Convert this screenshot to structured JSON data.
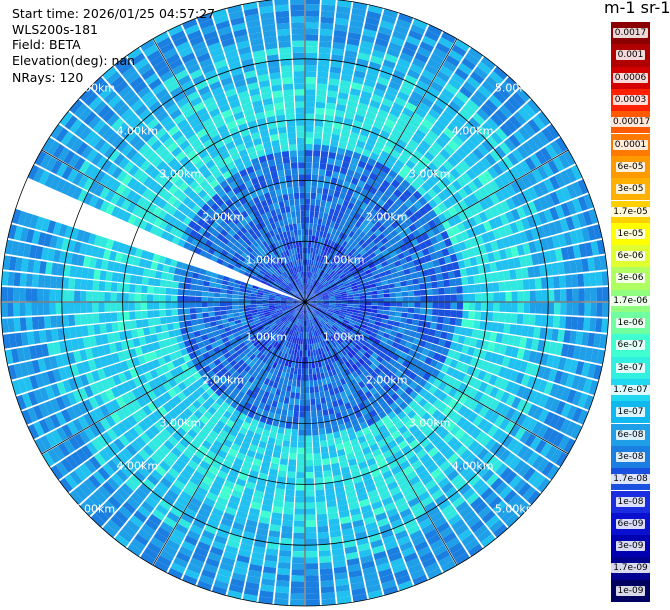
{
  "info": {
    "start_time": "Start time: 2026/01/25 04:57:27",
    "instrument": "WLS200s-181",
    "field": "Field: BETA",
    "elevation": "Elevation(deg): nan",
    "nrays": "NRays: 120"
  },
  "colorbar": {
    "title": "m-1 sr-1",
    "labels": [
      "0.0017",
      "0.001",
      "0.0006",
      "0.0003",
      "0.00017",
      "0.0001",
      "6e-05",
      "3e-05",
      "1.7e-05",
      "1e-05",
      "6e-06",
      "3e-06",
      "1.7e-06",
      "1e-06",
      "6e-07",
      "3e-07",
      "1.7e-07",
      "1e-07",
      "6e-08",
      "3e-08",
      "1.7e-08",
      "1e-08",
      "6e-09",
      "3e-09",
      "1.7e-09",
      "1e-09"
    ],
    "colors": [
      "#8b0000",
      "#b00000",
      "#d40000",
      "#ff2000",
      "#ff5a00",
      "#ff7a00",
      "#ff9900",
      "#ffb000",
      "#ffd000",
      "#ffff00",
      "#e0ff30",
      "#b0ff60",
      "#90ff80",
      "#70ffa0",
      "#40ffd0",
      "#30f0e0",
      "#20d8f0",
      "#10b8f0",
      "#1e9fe8",
      "#1a7fe0",
      "#1a50e0",
      "#1a2ee0",
      "#0a10d0",
      "#0000b0",
      "#000090",
      "#000060"
    ]
  },
  "chart_data": {
    "type": "heatmap",
    "projection": "polar-ppi",
    "field": "BETA",
    "rays": 120,
    "range_rings_km": [
      1,
      2,
      3,
      4,
      5
    ],
    "ring_labels": [
      "1.00km",
      "2.00km",
      "3.00km",
      "4.00km",
      "5.00km"
    ],
    "max_range_km": 5.0,
    "missing_sector_deg": [
      197,
      201
    ],
    "spokes_every_deg": 30,
    "range_structure": [
      {
        "range_km": [
          0,
          1.1
        ],
        "typical_beta": "1e-08"
      },
      {
        "range_km": [
          1.1,
          2.4
        ],
        "typical_beta": "3e-08"
      },
      {
        "range_km": [
          2.4,
          3.6
        ],
        "typical_beta": "1.7e-07"
      },
      {
        "range_km": [
          3.6,
          5.0
        ],
        "typical_beta": "6e-08"
      }
    ]
  }
}
